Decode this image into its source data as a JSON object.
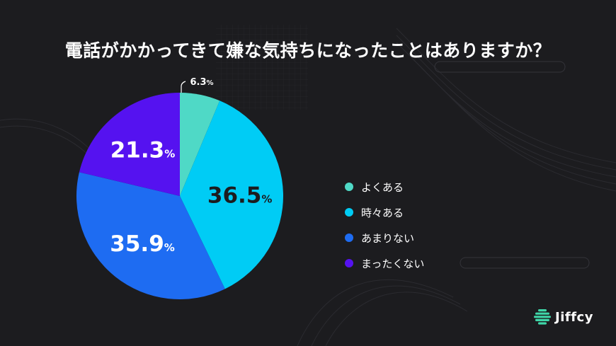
{
  "chart_data": {
    "type": "pie",
    "title": "電話がかかってきて嫌な気持ちになったことはありますか？",
    "unit": "%",
    "slices": [
      {
        "label": "よくある",
        "value": 6.3,
        "display": "6.3",
        "color": "#4fd9c6",
        "text_color": "#ffffff"
      },
      {
        "label": "時々ある",
        "value": 36.5,
        "display": "36.5",
        "color": "#00ccf5",
        "text_color": "#1c1c1f"
      },
      {
        "label": "あまりない",
        "value": 35.9,
        "display": "35.9",
        "color": "#1e6cf2",
        "text_color": "#ffffff"
      },
      {
        "label": "まったくない",
        "value": 21.3,
        "display": "21.3",
        "color": "#5512f0",
        "text_color": "#ffffff"
      }
    ],
    "legend_position": "right"
  },
  "brand": {
    "name": "Jiffcy",
    "logo_color": "#3fd6a8"
  },
  "background_color": "#1c1c1f"
}
